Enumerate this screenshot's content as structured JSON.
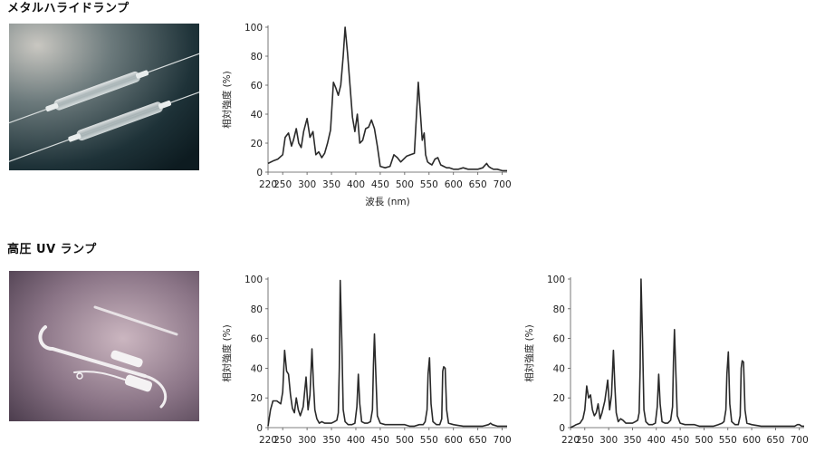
{
  "sections": [
    {
      "title": "メタルハライドランプ"
    },
    {
      "title": "高圧 UV ランプ"
    }
  ],
  "photos": [
    {
      "caption": "",
      "tone": "#3a4a4e"
    },
    {
      "caption": "",
      "tone": "#8a7486"
    }
  ],
  "chart_data": [
    {
      "type": "line",
      "title": "",
      "xlabel": "波長 (nm)",
      "ylabel": "相対強度 (%)",
      "xlim": [
        220,
        710
      ],
      "ylim": [
        0,
        100
      ],
      "xticks": [
        220,
        250,
        300,
        350,
        400,
        450,
        500,
        550,
        600,
        650,
        700
      ],
      "yticks": [
        0,
        20,
        40,
        60,
        80,
        100
      ],
      "grid": false,
      "line_color": "#2a2a2a",
      "series": [
        {
          "x": [
            220,
            232,
            240,
            250,
            255,
            262,
            268,
            272,
            278,
            283,
            288,
            293,
            300,
            306,
            312,
            318,
            324,
            330,
            336,
            342,
            348,
            354,
            359,
            364,
            369,
            374,
            378,
            383,
            388,
            393,
            398,
            403,
            408,
            414,
            420,
            426,
            432,
            438,
            444,
            450,
            460,
            470,
            478,
            485,
            492,
            498,
            504,
            512,
            520,
            528,
            536,
            540,
            543,
            547,
            551,
            556,
            562,
            568,
            574,
            580,
            586,
            592,
            600,
            610,
            620,
            630,
            640,
            650,
            660,
            668,
            672,
            676,
            682,
            690,
            700,
            710
          ],
          "y": [
            6,
            8,
            9,
            12,
            24,
            27,
            18,
            22,
            30,
            20,
            17,
            28,
            37,
            24,
            28,
            12,
            14,
            10,
            13,
            20,
            29,
            62,
            58,
            53,
            60,
            80,
            100,
            82,
            60,
            38,
            28,
            40,
            20,
            22,
            30,
            31,
            36,
            30,
            18,
            4,
            3,
            4,
            12,
            10,
            7,
            9,
            11,
            12,
            13,
            62,
            22,
            27,
            12,
            7,
            6,
            5,
            9,
            10,
            5,
            4,
            3,
            3,
            2,
            2,
            3,
            2,
            2,
            2,
            3,
            6,
            4,
            3,
            2,
            2,
            1,
            1
          ]
        }
      ]
    },
    {
      "type": "line",
      "title": "",
      "xlabel": "",
      "ylabel": "相対強度 (%)",
      "xlim": [
        220,
        710
      ],
      "ylim": [
        0,
        100
      ],
      "xticks": [
        220,
        250,
        300,
        350,
        400,
        450,
        500,
        550,
        600,
        650,
        700
      ],
      "yticks": [
        0,
        20,
        40,
        60,
        80,
        100
      ],
      "grid": false,
      "line_color": "#2a2a2a",
      "series": [
        {
          "x": [
            220,
            225,
            230,
            238,
            246,
            250,
            254,
            258,
            262,
            266,
            270,
            274,
            278,
            282,
            286,
            292,
            298,
            302,
            306,
            310,
            313,
            316,
            320,
            325,
            330,
            336,
            342,
            350,
            356,
            361,
            364,
            366,
            368,
            371,
            374,
            378,
            384,
            392,
            398,
            402,
            405,
            408,
            412,
            418,
            424,
            430,
            434,
            436,
            438,
            441,
            444,
            450,
            460,
            470,
            480,
            490,
            500,
            510,
            520,
            530,
            538,
            542,
            546,
            548,
            551,
            554,
            558,
            565,
            572,
            576,
            578,
            580,
            583,
            586,
            590,
            600,
            620,
            640,
            660,
            672,
            676,
            680,
            690,
            700,
            710
          ],
          "y": [
            1,
            12,
            18,
            18,
            16,
            24,
            52,
            38,
            36,
            22,
            13,
            10,
            20,
            12,
            8,
            14,
            34,
            12,
            22,
            53,
            30,
            12,
            6,
            3,
            4,
            3,
            3,
            3,
            4,
            5,
            10,
            40,
            99,
            60,
            12,
            4,
            2,
            2,
            3,
            14,
            36,
            16,
            4,
            3,
            3,
            4,
            12,
            42,
            63,
            35,
            8,
            3,
            2,
            2,
            2,
            2,
            2,
            1,
            1,
            2,
            2,
            4,
            12,
            36,
            47,
            16,
            4,
            2,
            2,
            6,
            38,
            41,
            40,
            12,
            3,
            2,
            1,
            1,
            1,
            2,
            3,
            2,
            1,
            1,
            1
          ]
        }
      ]
    },
    {
      "type": "line",
      "title": "",
      "xlabel": "",
      "ylabel": "相対強度 (%)",
      "xlim": [
        220,
        710
      ],
      "ylim": [
        0,
        100
      ],
      "xticks": [
        220,
        250,
        300,
        350,
        400,
        450,
        500,
        550,
        600,
        650,
        700
      ],
      "yticks": [
        0,
        20,
        40,
        60,
        80,
        100
      ],
      "grid": false,
      "line_color": "#2a2a2a",
      "series": [
        {
          "x": [
            220,
            226,
            232,
            240,
            246,
            250,
            254,
            258,
            262,
            266,
            270,
            274,
            278,
            282,
            286,
            292,
            298,
            302,
            306,
            310,
            313,
            316,
            320,
            325,
            330,
            336,
            342,
            350,
            356,
            361,
            364,
            366,
            368,
            371,
            374,
            378,
            384,
            392,
            398,
            402,
            405,
            408,
            412,
            418,
            424,
            430,
            434,
            436,
            438,
            441,
            444,
            450,
            460,
            470,
            480,
            490,
            500,
            510,
            520,
            530,
            538,
            542,
            546,
            548,
            551,
            554,
            558,
            565,
            572,
            576,
            578,
            580,
            583,
            586,
            590,
            600,
            620,
            640,
            660,
            680,
            690,
            696,
            700,
            705,
            710
          ],
          "y": [
            0,
            1,
            2,
            3,
            6,
            12,
            28,
            20,
            22,
            12,
            8,
            10,
            16,
            6,
            10,
            18,
            32,
            12,
            22,
            52,
            28,
            10,
            4,
            6,
            5,
            3,
            3,
            3,
            4,
            5,
            10,
            40,
            100,
            60,
            12,
            4,
            2,
            2,
            3,
            14,
            36,
            16,
            4,
            3,
            3,
            5,
            14,
            44,
            66,
            36,
            8,
            3,
            2,
            2,
            2,
            1,
            1,
            1,
            1,
            2,
            3,
            4,
            12,
            36,
            51,
            16,
            4,
            2,
            2,
            8,
            40,
            45,
            44,
            12,
            3,
            2,
            1,
            1,
            1,
            1,
            1,
            2,
            2,
            1,
            1
          ]
        }
      ]
    }
  ]
}
